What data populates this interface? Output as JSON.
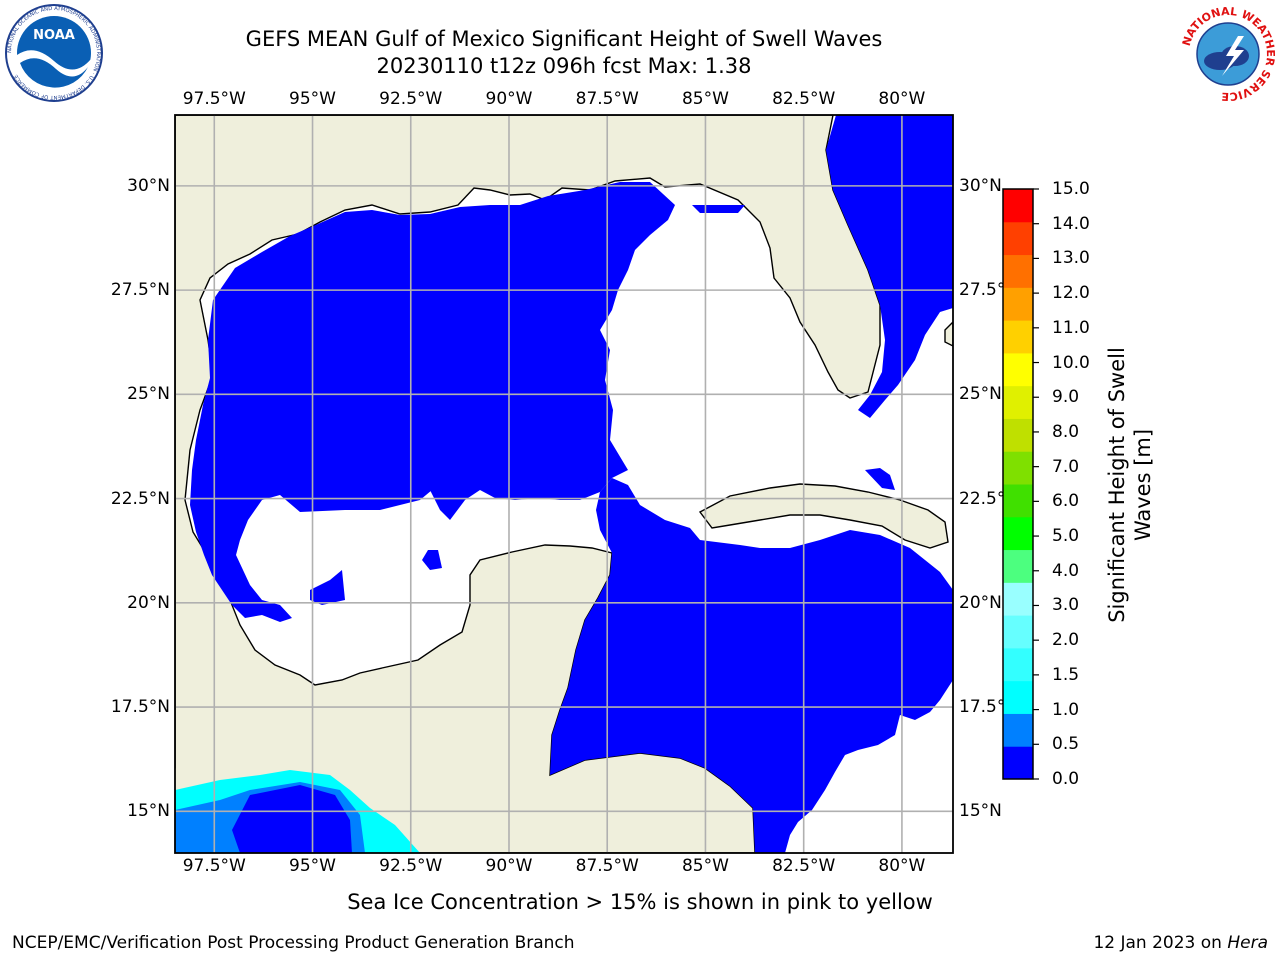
{
  "title_line1": "GEFS MEAN Gulf of Mexico Significant Height of Swell Waves",
  "title_line2": "20230110 t12z 096h fcst   Max: 1.38",
  "lon_labels": [
    "97.5°W",
    "95°W",
    "92.5°W",
    "90°W",
    "87.5°W",
    "85°W",
    "82.5°W",
    "80°W"
  ],
  "lat_labels": [
    "30°N",
    "27.5°N",
    "25°N",
    "22.5°N",
    "20°N",
    "17.5°N",
    "15°N"
  ],
  "colorbar": {
    "title": "Significant Height of Swell Waves [m]",
    "title_line1": "Significant Height of Swell",
    "title_line2": "Waves [m]",
    "ticks": [
      "15.0",
      "14.0",
      "13.0",
      "12.0",
      "11.0",
      "10.0",
      "9.0",
      "8.0",
      "7.0",
      "6.0",
      "5.0",
      "4.0",
      "3.0",
      "2.0",
      "1.5",
      "1.0",
      "0.5",
      "0.0"
    ],
    "colors_bottom_to_top": [
      "#0000ff",
      "#0080ff",
      "#00ffff",
      "#33ffff",
      "#66ffff",
      "#99ffff",
      "#4cff7f",
      "#00ff00",
      "#40e000",
      "#7fe000",
      "#bfe000",
      "#e0f000",
      "#ffff00",
      "#ffd000",
      "#ffa000",
      "#ff7000",
      "#ff4000",
      "#ff0000"
    ]
  },
  "map": {
    "lon_range": [
      -98.5,
      -78.7
    ],
    "lat_range": [
      14.0,
      31.7
    ],
    "land_color": "#efefdc",
    "water_color": "#ffffff",
    "grid": true
  },
  "footer_note": "Sea Ice Concentration > 15% is shown in pink to yellow",
  "footer_left": "NCEP/EMC/Verification Post Processing Product Generation Branch",
  "footer_date": "12 Jan 2023 on ",
  "footer_machine": "Hera",
  "noaa_logo_text": "NOAA",
  "noaa_ring_text": "NATIONAL OCEANIC AND ATMOSPHERIC ADMINISTRATION · U.S. DEPARTMENT OF COMMERCE",
  "nws_ring_text": "NATIONAL WEATHER SERVICE"
}
